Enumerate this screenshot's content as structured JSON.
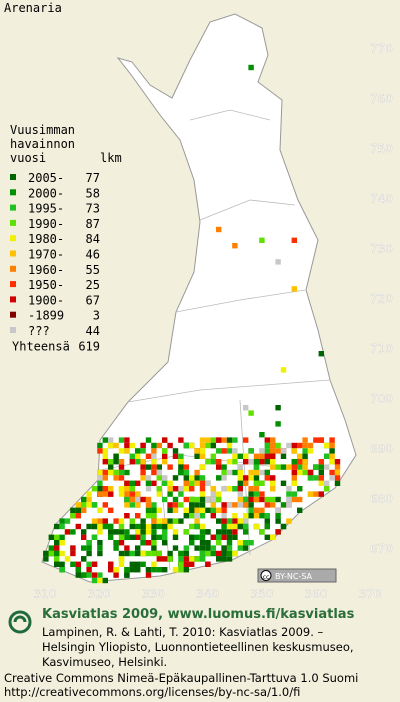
{
  "title": "Arenaria",
  "legend": {
    "heading": [
      "Vuusimman",
      "havainnon",
      "vuosi"
    ],
    "count_heading": "lkm",
    "rows": [
      {
        "label": "2005-",
        "count": "77",
        "color": "#006400"
      },
      {
        "label": "2000-",
        "count": "58",
        "color": "#009000"
      },
      {
        "label": "1995-",
        "count": "73",
        "color": "#20c020"
      },
      {
        "label": "1990-",
        "count": "87",
        "color": "#60e000"
      },
      {
        "label": "1980-",
        "count": "84",
        "color": "#f0f000"
      },
      {
        "label": "1970-",
        "count": "46",
        "color": "#ffc000"
      },
      {
        "label": "1960-",
        "count": "55",
        "color": "#ff8000"
      },
      {
        "label": "1950-",
        "count": "25",
        "color": "#ff3000"
      },
      {
        "label": "1900-",
        "count": "67",
        "color": "#d00000"
      },
      {
        "label": "-1899",
        "count": "3",
        "color": "#800000"
      },
      {
        "label": "???",
        "count": "44",
        "color": "#c8c8c8"
      }
    ],
    "total_label": "Yhteensä",
    "total": "619"
  },
  "grid": {
    "north": [
      "770",
      "760",
      "750",
      "740",
      "730",
      "720",
      "710",
      "700",
      "690",
      "680",
      "670"
    ],
    "east": [
      "310",
      "320",
      "330",
      "340",
      "350",
      "360",
      "370"
    ]
  },
  "license_badge": "BY-NC-SA",
  "footer": {
    "heading": "Kasviatlas 2009, www.luomus.fi/kasviatlas",
    "citation": [
      "Lampinen, R. & Lahti, T. 2010: Kasviatlas 2009. –",
      "Helsingin Yliopisto, Luonnontieteellinen keskusmuseo,",
      "Kasvimuseo, Helsinki."
    ],
    "license": [
      "Creative Commons Nimeä-Epäkaupallinen-Tarttuva 1.0 Suomi",
      "http://creativecommons.org/licenses/by-nc-sa/1.0/fi"
    ]
  }
}
